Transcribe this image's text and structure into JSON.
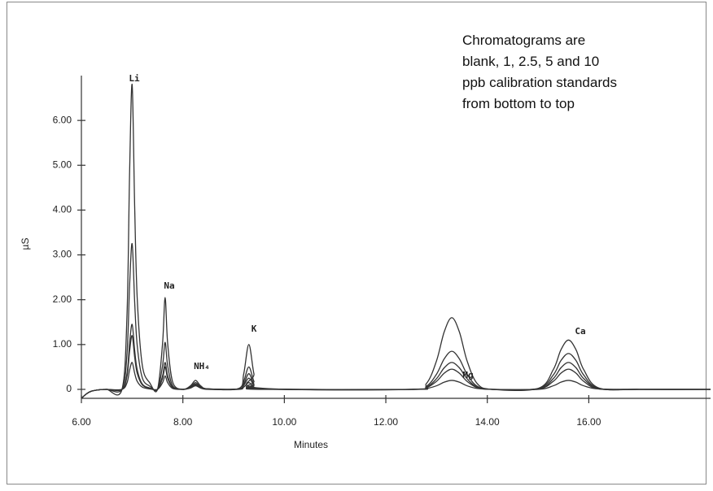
{
  "chart_data": {
    "type": "line",
    "xlabel": "Minutes",
    "ylabel": "µS",
    "annotations": [
      "Li",
      "Na",
      "NH₄",
      "K",
      "Mg",
      "Ca"
    ],
    "note": [
      "Chromatograms are",
      "blank, 1, 2.5, 5 and 10",
      "ppb calibration standards",
      "from bottom to top"
    ],
    "xlim": [
      6,
      18.4
    ],
    "ylim": [
      -0.2,
      7.0
    ],
    "xticks": [
      {
        "value": 6,
        "label": "6.00"
      },
      {
        "value": 8,
        "label": "8.00"
      },
      {
        "value": 10,
        "label": "10.00"
      },
      {
        "value": 12,
        "label": "12.00"
      },
      {
        "value": 14,
        "label": "14.00"
      },
      {
        "value": 16,
        "label": "16.00"
      }
    ],
    "yticks": [
      0,
      {
        "value": 1,
        "label": "1.00"
      },
      {
        "value": 2,
        "label": "2.00"
      },
      {
        "value": 3,
        "label": "3.00"
      },
      {
        "value": 4,
        "label": "4.00"
      },
      {
        "value": 5,
        "label": "5.00"
      },
      {
        "value": 6,
        "label": "6.00"
      }
    ],
    "x": [
      6.0,
      6.1,
      6.2,
      6.35,
      6.5,
      6.8,
      6.9,
      6.95,
      7.0,
      7.05,
      7.1,
      7.2,
      7.35,
      7.5,
      7.6,
      7.65,
      7.7,
      7.8,
      8.0,
      8.15,
      8.25,
      8.35,
      8.5,
      9.1,
      9.2,
      9.3,
      9.4,
      9.5,
      12.5,
      12.8,
      13.0,
      13.15,
      13.3,
      13.45,
      13.6,
      13.8,
      14.1,
      15.0,
      15.3,
      15.45,
      15.6,
      15.75,
      15.9,
      16.2,
      17.0,
      18.4
    ],
    "series": [
      {
        "color": "#333333",
        "values": [
          -0.2,
          -0.1,
          -0.04,
          -0.01,
          0,
          0,
          0.15,
          0.43,
          0.6,
          0.36,
          0.18,
          0.05,
          0.01,
          0,
          0.15,
          0.3,
          0.15,
          0.02,
          0,
          0.03,
          0.08,
          0.03,
          0,
          0,
          0.05,
          0.15,
          0.05,
          0,
          0,
          0.02,
          0.08,
          0.16,
          0.2,
          0.16,
          0.08,
          0.02,
          0,
          0,
          0.08,
          0.16,
          0.2,
          0.16,
          0.08,
          0.01,
          0,
          0
        ]
      },
      {
        "color": "#333333",
        "values": [
          -0.2,
          -0.1,
          -0.04,
          -0.01,
          0,
          0,
          0.3,
          0.85,
          1.2,
          0.72,
          0.36,
          0.1,
          0.02,
          0,
          0.25,
          0.5,
          0.25,
          0.04,
          0,
          0.04,
          0.1,
          0.04,
          0.01,
          0.01,
          0.09,
          0.25,
          0.09,
          0.01,
          0,
          0.04,
          0.18,
          0.36,
          0.45,
          0.36,
          0.18,
          0.04,
          0,
          0.01,
          0.18,
          0.36,
          0.45,
          0.36,
          0.18,
          0.01,
          0,
          0
        ]
      },
      {
        "color": "#333333",
        "values": [
          -0.2,
          -0.1,
          -0.04,
          -0.01,
          0,
          0,
          0.36,
          1.03,
          1.45,
          0.87,
          0.44,
          0.12,
          0.03,
          0,
          0.3,
          0.6,
          0.3,
          0.05,
          0,
          0.05,
          0.12,
          0.05,
          0.01,
          0.01,
          0.12,
          0.35,
          0.12,
          0.01,
          0,
          0.05,
          0.24,
          0.48,
          0.6,
          0.48,
          0.24,
          0.05,
          0,
          0.01,
          0.24,
          0.48,
          0.6,
          0.48,
          0.24,
          0.02,
          0,
          0
        ]
      },
      {
        "color": "#333333",
        "values": [
          -0.2,
          -0.1,
          -0.04,
          -0.01,
          0,
          0,
          0.81,
          2.31,
          3.25,
          1.95,
          0.98,
          0.26,
          0.07,
          0,
          0.53,
          1.05,
          0.53,
          0.08,
          0,
          0.06,
          0.15,
          0.06,
          0.01,
          0.01,
          0.18,
          0.5,
          0.18,
          0.02,
          0,
          0.07,
          0.34,
          0.68,
          0.85,
          0.68,
          0.34,
          0.07,
          0,
          0.02,
          0.32,
          0.64,
          0.8,
          0.64,
          0.32,
          0.02,
          0,
          0
        ]
      },
      {
        "color": "#333333",
        "values": [
          -0.2,
          -0.1,
          -0.04,
          -0.01,
          0,
          0,
          1.7,
          4.83,
          6.8,
          4.08,
          2.04,
          0.54,
          0.14,
          0,
          1.03,
          2.05,
          1.03,
          0.16,
          0,
          0.08,
          0.2,
          0.08,
          0.01,
          0.02,
          0.35,
          1.0,
          0.35,
          0.03,
          0,
          0.13,
          0.64,
          1.28,
          1.6,
          1.28,
          0.64,
          0.13,
          0,
          0.02,
          0.44,
          0.88,
          1.1,
          0.88,
          0.44,
          0.03,
          0,
          0
        ]
      }
    ]
  }
}
